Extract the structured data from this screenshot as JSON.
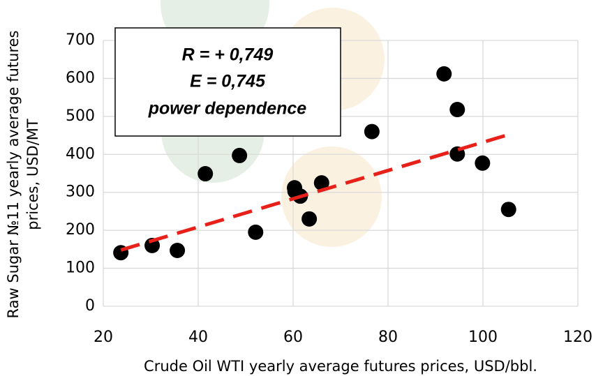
{
  "chart_data": {
    "type": "scatter",
    "xlabel": "Crude Oil WTI yearly average futures prices, USD/bbl.",
    "ylabel": [
      "Raw Sugar №11 yearly average futures",
      "prices, USD/MT"
    ],
    "annotation": [
      "R  = + 0,749",
      "E = 0,745",
      "power dependence"
    ],
    "xlim": [
      20,
      120
    ],
    "xticks": [
      20,
      40,
      60,
      80,
      100,
      120
    ],
    "ylim": [
      0,
      700
    ],
    "yticks": [
      0,
      100,
      200,
      300,
      400,
      500,
      600,
      700
    ],
    "grid": true,
    "series": [
      {
        "color": "#000000",
        "x": [
          23.7,
          30.3,
          35.6,
          41.5,
          48.7,
          52.1,
          60.3,
          60.4,
          61.5,
          63.4,
          66.0,
          76.6,
          91.8,
          94.6,
          94.6,
          99.9,
          105.4
        ],
        "values": [
          141,
          160,
          147,
          349,
          397,
          195,
          312,
          303,
          290,
          230,
          325,
          460,
          612,
          518,
          401,
          377,
          255
        ]
      },
      {
        "color": "#e8201a",
        "line": "dashed",
        "x": [
          23.7,
          105.4
        ],
        "values": [
          148,
          452
        ]
      }
    ]
  }
}
